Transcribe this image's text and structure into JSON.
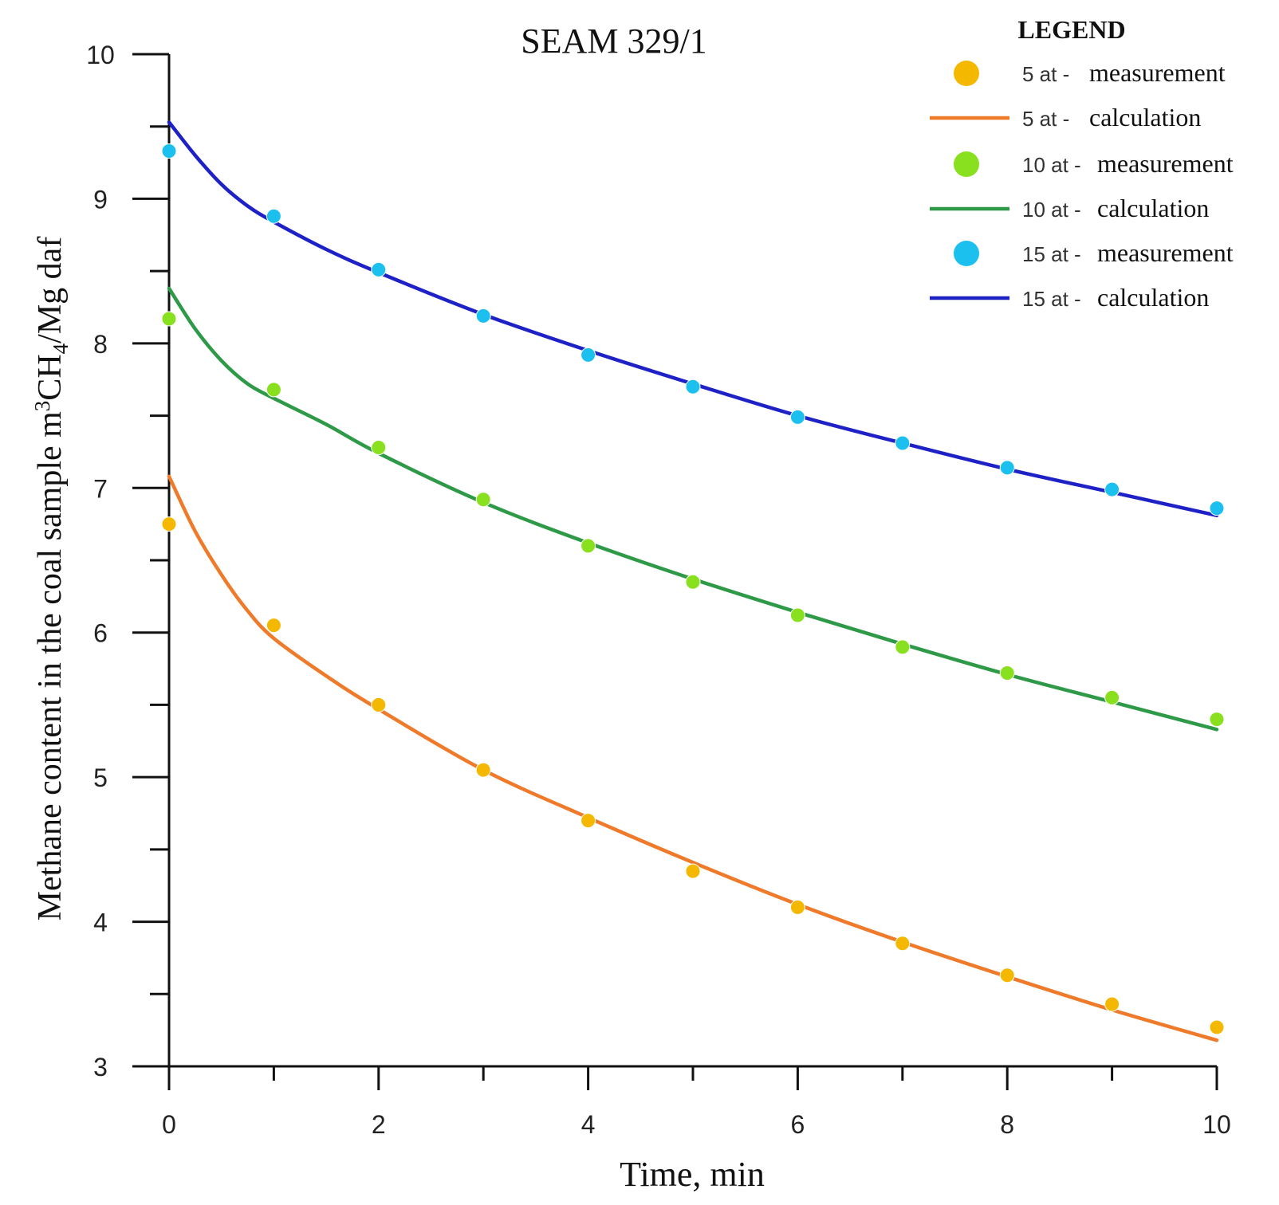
{
  "chart_data": {
    "type": "line",
    "title": "SEAM 329/1",
    "xlabel": "Time, min",
    "ylabel_parts": [
      "Methane content in the coal sample m",
      "3",
      "CH",
      "4",
      "/Mg daf"
    ],
    "xlim": [
      0,
      10
    ],
    "ylim": [
      3,
      10
    ],
    "x_ticks": [
      0,
      2,
      4,
      6,
      8,
      10
    ],
    "x_minor_ticks": [
      1,
      3,
      5,
      7,
      9
    ],
    "y_ticks": [
      3,
      4,
      5,
      6,
      7,
      8,
      9,
      10
    ],
    "y_minor_ticks": [
      3.5,
      4.5,
      5.5,
      6.5,
      7.5,
      8.5,
      9.5
    ],
    "grid": false,
    "legend": {
      "title": "LEGEND",
      "position": "top-right",
      "entries": [
        {
          "prefix": "5 at -",
          "label": "measurement",
          "kind": "marker",
          "color": "#F5B800"
        },
        {
          "prefix": "5 at -",
          "label": "calculation",
          "kind": "line",
          "color": "#EE7A2A"
        },
        {
          "prefix": "10 at -",
          "label": "measurement",
          "kind": "marker",
          "color": "#88E01E"
        },
        {
          "prefix": "10 at -",
          "label": "calculation",
          "kind": "line",
          "color": "#2E9A48"
        },
        {
          "prefix": "15 at -",
          "label": "measurement",
          "kind": "marker",
          "color": "#1CC0EE"
        },
        {
          "prefix": "15 at -",
          "label": "calculation",
          "kind": "line",
          "color": "#1E22C6"
        }
      ]
    },
    "measurement_x": [
      0,
      1,
      2,
      3,
      4,
      5,
      6,
      7,
      8,
      9,
      10
    ],
    "series": [
      {
        "name": "5 at - measurement",
        "kind": "scatter",
        "color": "#F5B800",
        "values": [
          6.75,
          6.05,
          5.5,
          5.05,
          4.7,
          4.35,
          4.1,
          3.85,
          3.63,
          3.43,
          3.27
        ]
      },
      {
        "name": "5 at - calculation",
        "kind": "line",
        "color": "#EE7A2A",
        "x": [
          0,
          0.25,
          0.5,
          0.75,
          1,
          1.5,
          2,
          3,
          4,
          5,
          6,
          7,
          8,
          9,
          10
        ],
        "values": [
          7.08,
          6.7,
          6.4,
          6.15,
          5.96,
          5.7,
          5.47,
          5.05,
          4.72,
          4.41,
          4.12,
          3.86,
          3.62,
          3.39,
          3.18
        ]
      },
      {
        "name": "10 at - measurement",
        "kind": "scatter",
        "color": "#88E01E",
        "values": [
          8.17,
          7.68,
          7.28,
          6.92,
          6.6,
          6.35,
          6.12,
          5.9,
          5.72,
          5.55,
          5.4
        ]
      },
      {
        "name": "10 at - calculation",
        "kind": "line",
        "color": "#2E9A48",
        "x": [
          0,
          0.25,
          0.5,
          0.75,
          1,
          1.5,
          2,
          3,
          4,
          5,
          6,
          7,
          8,
          9,
          10
        ],
        "values": [
          8.38,
          8.1,
          7.88,
          7.72,
          7.62,
          7.44,
          7.24,
          6.9,
          6.62,
          6.37,
          6.14,
          5.92,
          5.71,
          5.52,
          5.33
        ]
      },
      {
        "name": "15 at - measurement",
        "kind": "scatter",
        "color": "#1CC0EE",
        "values": [
          9.33,
          8.88,
          8.51,
          8.19,
          7.92,
          7.7,
          7.49,
          7.31,
          7.14,
          6.99,
          6.86
        ]
      },
      {
        "name": "15 at - calculation",
        "kind": "line",
        "color": "#1E22C6",
        "x": [
          0,
          0.25,
          0.5,
          0.75,
          1,
          1.5,
          2,
          3,
          4,
          5,
          6,
          7,
          8,
          9,
          10
        ],
        "values": [
          9.53,
          9.3,
          9.1,
          8.95,
          8.84,
          8.65,
          8.49,
          8.2,
          7.95,
          7.72,
          7.5,
          7.31,
          7.13,
          6.97,
          6.81
        ]
      }
    ]
  }
}
